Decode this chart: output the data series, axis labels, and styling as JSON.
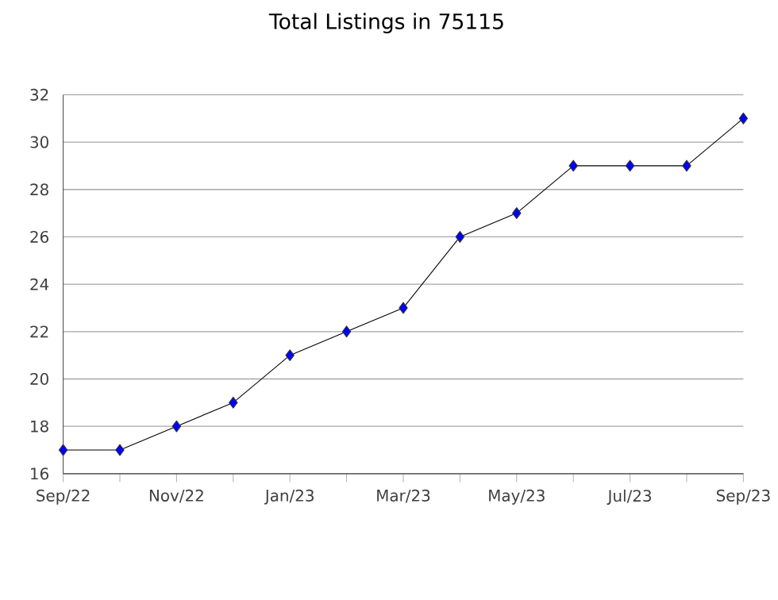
{
  "chart_data": {
    "type": "line",
    "title": "Total Listings in 75115",
    "x": [
      "2022-09",
      "2022-10",
      "2022-11",
      "2022-12",
      "2023-01",
      "2023-02",
      "2023-03",
      "2023-04",
      "2023-05",
      "2023-06",
      "2023-07",
      "2023-08",
      "2023-09"
    ],
    "series": [
      {
        "color": "#0000ff",
        "values": [
          17,
          17,
          18,
          19,
          21,
          22,
          23,
          26,
          27,
          29,
          29,
          29,
          31
        ]
      }
    ],
    "xlim": [
      "2022-09",
      "2023-09"
    ],
    "xticks": [
      {
        "value": "2022-09",
        "label": "Sep/22"
      },
      {
        "value": "2022-10",
        "label": null
      },
      {
        "value": "2022-11",
        "label": "Nov/22"
      },
      {
        "value": "2022-12",
        "label": null
      },
      {
        "value": "2023-01",
        "label": "Jan/23"
      },
      {
        "value": "2023-02",
        "label": null
      },
      {
        "value": "2023-03",
        "label": "Mar/23"
      },
      {
        "value": "2023-04",
        "label": null
      },
      {
        "value": "2023-05",
        "label": "May/23"
      },
      {
        "value": "2023-06",
        "label": null
      },
      {
        "value": "2023-07",
        "label": "Jul/23"
      },
      {
        "value": "2023-08",
        "label": null
      },
      {
        "value": "2023-09",
        "label": "Sep/23"
      }
    ],
    "ylim": [
      16,
      32
    ],
    "yticks": [
      16,
      18,
      20,
      22,
      24,
      26,
      28,
      30,
      32
    ],
    "grid": "y",
    "marker": "diamond",
    "line_style": "solid"
  }
}
